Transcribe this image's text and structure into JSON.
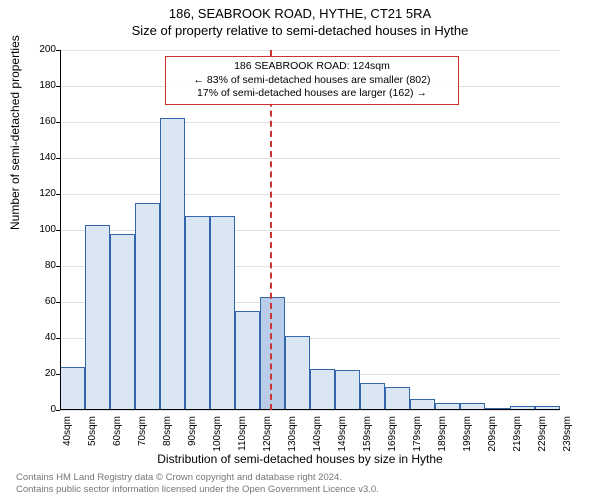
{
  "title1": "186, SEABROOK ROAD, HYTHE, CT21 5RA",
  "title2": "Size of property relative to semi-detached houses in Hythe",
  "ylabel": "Number of semi-detached properties",
  "xlabel": "Distribution of semi-detached houses by size in Hythe",
  "chart": {
    "type": "histogram",
    "bin_start": 40,
    "bin_width": 10,
    "bin_count": 20,
    "categories": [
      "40sqm",
      "50sqm",
      "60sqm",
      "70sqm",
      "80sqm",
      "90sqm",
      "100sqm",
      "110sqm",
      "120sqm",
      "130sqm",
      "140sqm",
      "149sqm",
      "159sqm",
      "169sqm",
      "179sqm",
      "189sqm",
      "199sqm",
      "209sqm",
      "219sqm",
      "229sqm",
      "239sqm"
    ],
    "values": [
      24,
      103,
      98,
      115,
      162,
      108,
      108,
      55,
      63,
      41,
      23,
      22,
      15,
      13,
      6,
      4,
      4,
      0,
      2,
      2
    ],
    "ylim": [
      0,
      200
    ],
    "ytick_step": 20,
    "bar_fill": "#dbe6f4",
    "bar_fill_highlight": "#b9cde8",
    "bar_border": "#3366aa",
    "grid_color": "#e0e0e0",
    "axis_color": "#000000",
    "background": "#ffffff",
    "tick_fontsize": 10,
    "label_fontsize": 12,
    "title_fontsize": 13,
    "highlight_index": 8
  },
  "annotation": {
    "x_value": 124,
    "line_color": "#cc3333",
    "box_border": "#cc3333",
    "line1": "186 SEABROOK ROAD: 124sqm",
    "line2": "← 83% of semi-detached houses are smaller (802)",
    "line3": "17% of semi-detached houses are larger (162) →"
  },
  "footer1": "Contains HM Land Registry data © Crown copyright and database right 2024.",
  "footer2": "Contains public sector information licensed under the Open Government Licence v3.0."
}
